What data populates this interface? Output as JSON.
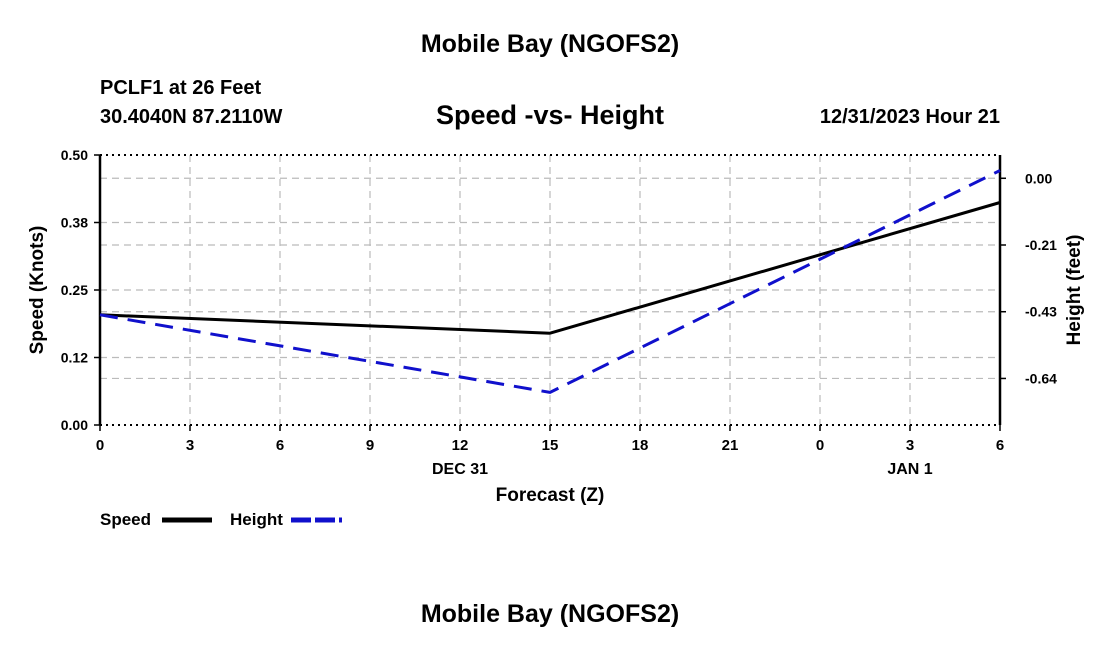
{
  "header": {
    "title": "Mobile Bay (NGOFS2)",
    "station": "PCLF1 at 26 Feet",
    "coords": "30.4040N  87.2110W",
    "subtitle": "Speed -vs- Height",
    "timestamp": "12/31/2023 Hour 21",
    "bottom_title": "Mobile Bay (NGOFS2)"
  },
  "chart_data": {
    "type": "line",
    "xlabel": "Forecast (Z)",
    "x_hours": [
      0,
      3,
      6,
      9,
      12,
      15,
      18,
      21,
      24,
      27,
      30
    ],
    "x_tick_labels": [
      "0",
      "3",
      "6",
      "9",
      "12",
      "15",
      "18",
      "21",
      "0",
      "3",
      "6"
    ],
    "date_labels": [
      {
        "text": "DEC 31",
        "hour": 12
      },
      {
        "text": "JAN 1",
        "hour": 27
      }
    ],
    "xlim": [
      0,
      30
    ],
    "left_axis": {
      "label": "Speed (Knots)",
      "ylim": [
        0,
        0.5
      ],
      "ticks": [
        0.0,
        0.125,
        0.25,
        0.375,
        0.5
      ],
      "tick_labels": [
        "0.00",
        "0.12",
        "0.25",
        "0.38",
        "0.50"
      ]
    },
    "right_axis": {
      "label": "Height (feet)",
      "ylim": [
        -0.795,
        0.075
      ],
      "ticks": [
        0.0,
        -0.215,
        -0.43,
        -0.645
      ],
      "tick_labels": [
        "0.00",
        "-0.21",
        "-0.43",
        "-0.64"
      ]
    },
    "grid": true,
    "series": [
      {
        "name": "Speed",
        "axis": "left",
        "color": "#000000",
        "style": "solid",
        "x": [
          0,
          15,
          30
        ],
        "values": [
          0.204,
          0.17,
          0.412
        ]
      },
      {
        "name": "Height",
        "axis": "right",
        "color": "#1010cc",
        "style": "dashed",
        "x": [
          0,
          15,
          30
        ],
        "values": [
          -0.44,
          -0.69,
          0.025
        ]
      }
    ],
    "legend": [
      {
        "name": "Speed",
        "color": "#000000",
        "style": "solid"
      },
      {
        "name": "Height",
        "color": "#1010cc",
        "style": "dashed"
      }
    ],
    "legend_position": "bottom-left"
  }
}
